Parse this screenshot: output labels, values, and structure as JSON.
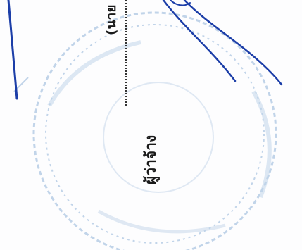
{
  "document": {
    "role_label": "ผู้ว่าจ้าง",
    "parenthesis_fragment": "(นาย"
  },
  "stamp": {
    "color": "#b7cde6"
  },
  "signature": {
    "color": "#1c3ea8"
  }
}
